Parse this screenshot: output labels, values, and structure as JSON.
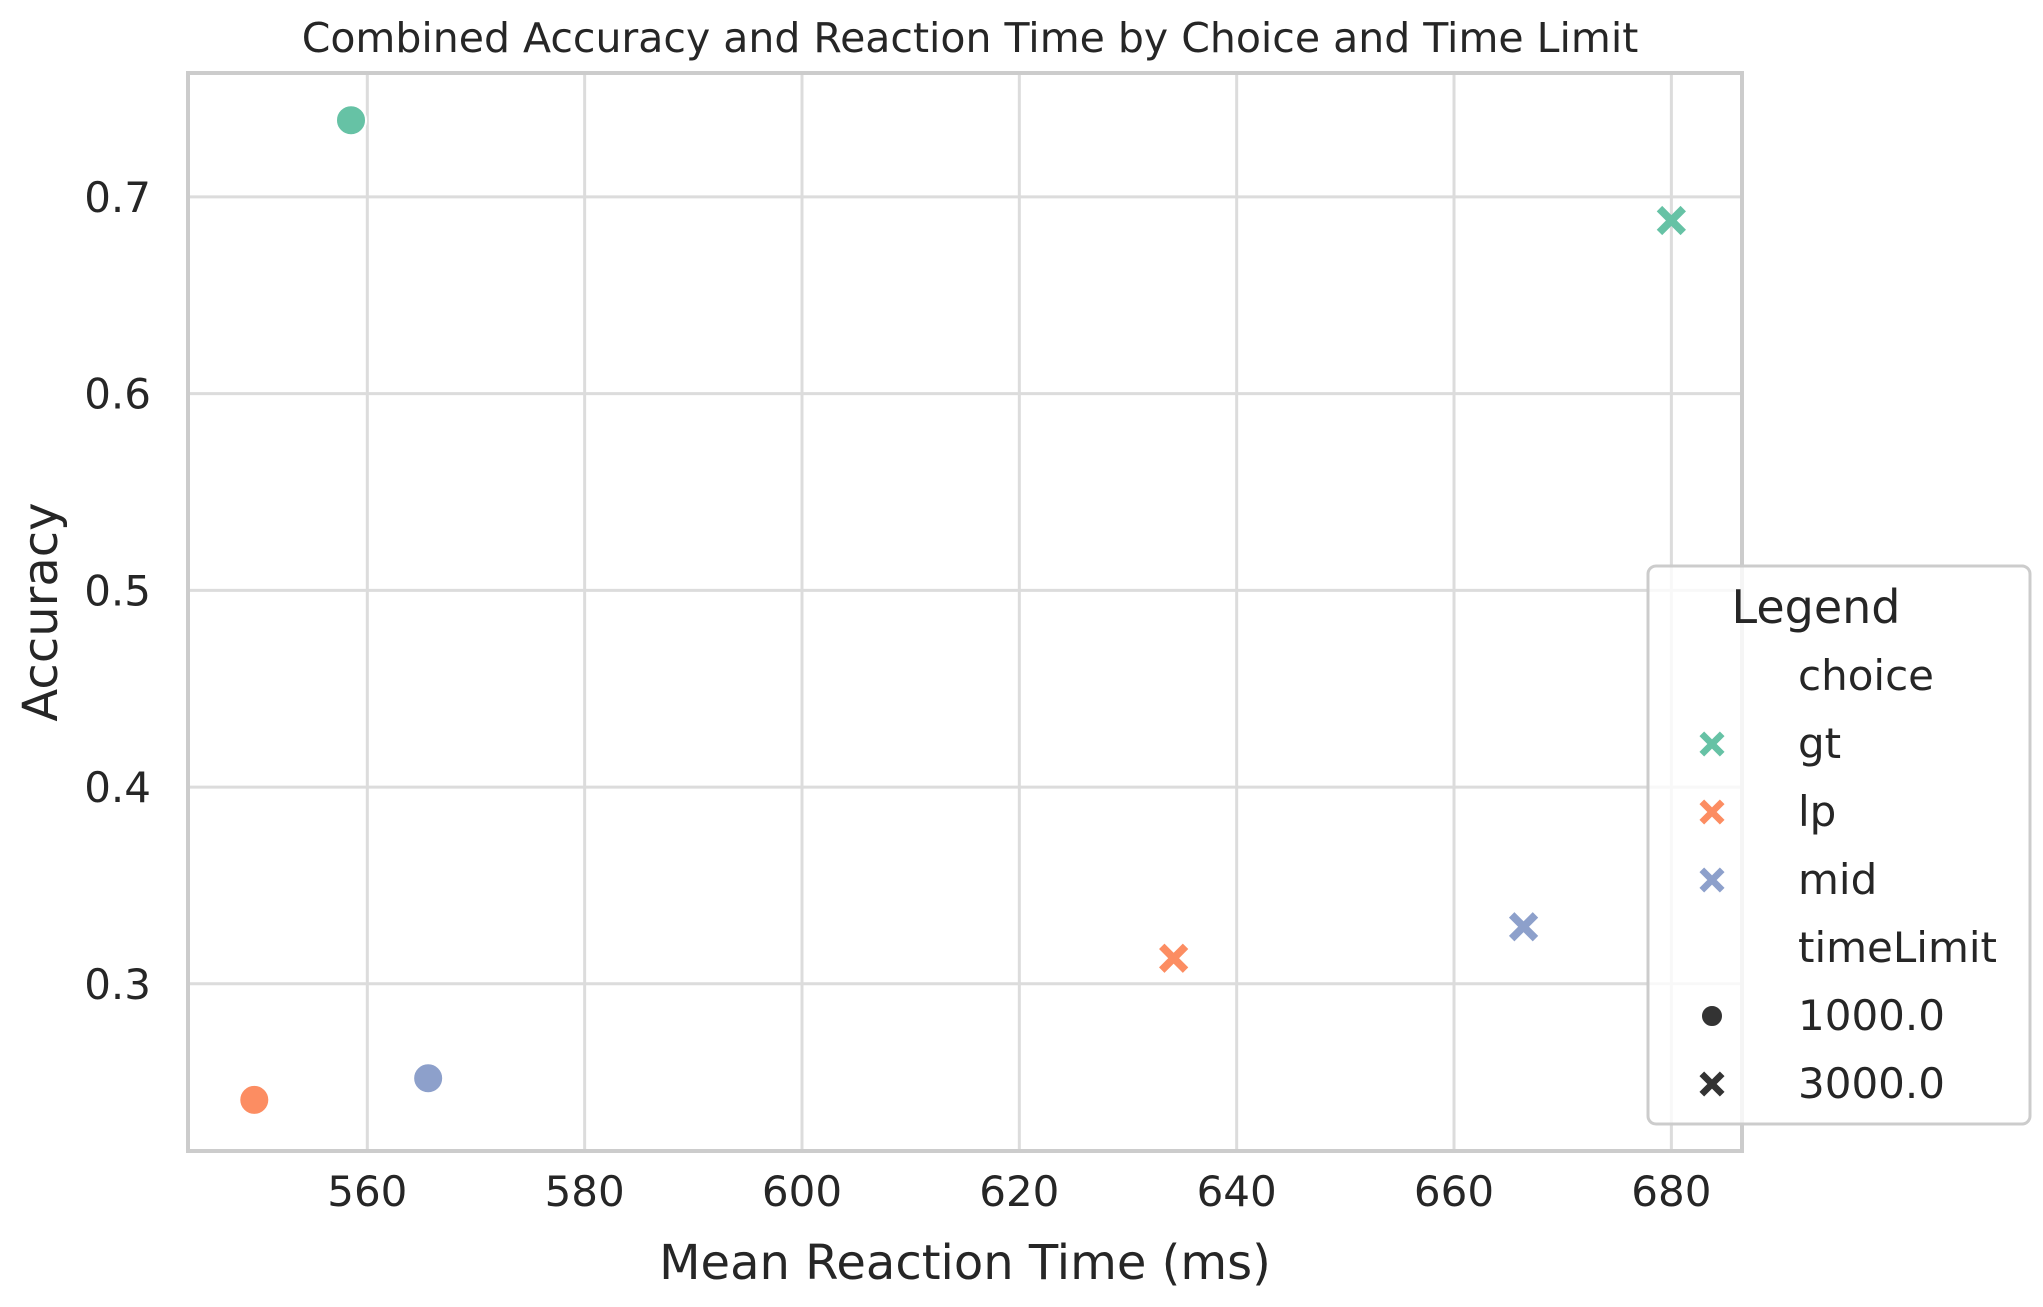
{
  "chart_data": {
    "type": "scatter",
    "title": "Combined Accuracy and Reaction Time by Choice and Time Limit",
    "xlabel": "Mean Reaction Time (ms)",
    "ylabel": "Accuracy",
    "xlim": [
      543.5,
      686.5
    ],
    "ylim": [
      0.215,
      0.763
    ],
    "xticks": [
      560,
      580,
      600,
      620,
      640,
      660,
      680
    ],
    "yticks": [
      0.3,
      0.4,
      0.5,
      0.6,
      0.7
    ],
    "xtick_labels": [
      "560",
      "580",
      "600",
      "620",
      "640",
      "660",
      "680"
    ],
    "ytick_labels": [
      "0.3",
      "0.4",
      "0.5",
      "0.6",
      "0.7"
    ],
    "grid": true,
    "colors": {
      "gt": "#66c2a5",
      "lp": "#fc8d62",
      "mid": "#8da0cb",
      "neutral": "#333333"
    },
    "markers": {
      "1000.0": "circle",
      "3000.0": "x"
    },
    "points": [
      {
        "choice": "gt",
        "timeLimit": "1000.0",
        "x": 558.5,
        "y": 0.739
      },
      {
        "choice": "gt",
        "timeLimit": "3000.0",
        "x": 680.0,
        "y": 0.688
      },
      {
        "choice": "lp",
        "timeLimit": "1000.0",
        "x": 549.6,
        "y": 0.241
      },
      {
        "choice": "lp",
        "timeLimit": "3000.0",
        "x": 634.2,
        "y": 0.313
      },
      {
        "choice": "mid",
        "timeLimit": "1000.0",
        "x": 565.6,
        "y": 0.252
      },
      {
        "choice": "mid",
        "timeLimit": "3000.0",
        "x": 666.4,
        "y": 0.329
      }
    ],
    "legend": {
      "title": "Legend",
      "placement": "center-right",
      "entries": [
        {
          "label": "choice",
          "marker": "none",
          "color": ""
        },
        {
          "label": "gt",
          "marker": "x",
          "color": "#66c2a5"
        },
        {
          "label": "lp",
          "marker": "x",
          "color": "#fc8d62"
        },
        {
          "label": "mid",
          "marker": "x",
          "color": "#8da0cb"
        },
        {
          "label": "timeLimit",
          "marker": "none",
          "color": ""
        },
        {
          "label": "1000.0",
          "marker": "circle",
          "color": "#333333"
        },
        {
          "label": "3000.0",
          "marker": "x",
          "color": "#333333"
        }
      ]
    }
  }
}
